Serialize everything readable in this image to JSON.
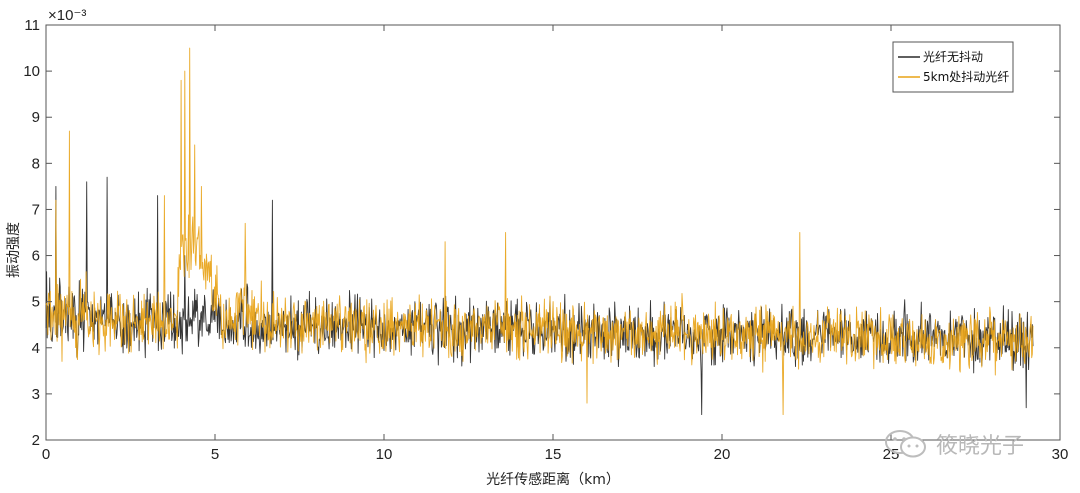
{
  "watermark": {
    "text": "筱晓光子",
    "icon": "wechat-icon"
  },
  "chart_data": {
    "type": "line",
    "title": "",
    "xlabel": "光纤传感距离（km）",
    "ylabel": "振动强度",
    "y_exponent_label": "×10⁻³",
    "xlim": [
      0,
      30
    ],
    "ylim": [
      2,
      11
    ],
    "xticks": [
      0,
      5,
      10,
      15,
      20,
      25,
      30
    ],
    "yticks": [
      2,
      3,
      4,
      5,
      6,
      7,
      8,
      9,
      10,
      11
    ],
    "grid": false,
    "legend_position": "top-right",
    "noise": {
      "samples": 1600,
      "baseline_start": 4.6,
      "baseline_end": 4.15,
      "amplitude": 0.55
    },
    "series": [
      {
        "name": "光纤无抖动",
        "color": "#2a2a2a",
        "peaks": [
          {
            "x": 0.3,
            "y": 7.5
          },
          {
            "x": 1.2,
            "y": 7.6
          },
          {
            "x": 1.8,
            "y": 7.7
          },
          {
            "x": 3.3,
            "y": 7.3
          },
          {
            "x": 6.7,
            "y": 7.2
          },
          {
            "x": 4.1,
            "y": 6.0
          },
          {
            "x": 19.4,
            "y": 2.55
          },
          {
            "x": 29.0,
            "y": 2.7
          }
        ]
      },
      {
        "name": "5km处抖动光纤",
        "color": "#e8a317",
        "peaks": [
          {
            "x": 0.7,
            "y": 8.7
          },
          {
            "x": 0.3,
            "y": 7.2
          },
          {
            "x": 3.5,
            "y": 7.3
          },
          {
            "x": 4.0,
            "y": 9.8
          },
          {
            "x": 4.1,
            "y": 10.0
          },
          {
            "x": 4.25,
            "y": 10.5
          },
          {
            "x": 4.4,
            "y": 8.4
          },
          {
            "x": 4.6,
            "y": 7.5
          },
          {
            "x": 5.9,
            "y": 6.7
          },
          {
            "x": 11.8,
            "y": 6.3
          },
          {
            "x": 13.6,
            "y": 6.5
          },
          {
            "x": 22.3,
            "y": 6.5
          },
          {
            "x": 21.8,
            "y": 2.55
          },
          {
            "x": 16.0,
            "y": 2.8
          }
        ]
      }
    ]
  }
}
